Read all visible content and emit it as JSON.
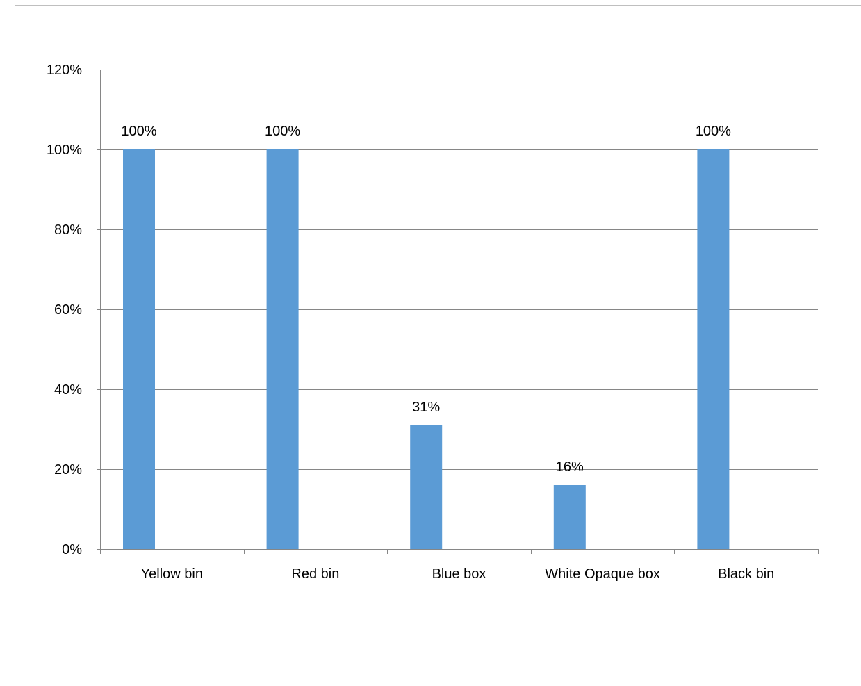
{
  "chart_data": {
    "type": "bar",
    "title": "",
    "xlabel": "",
    "ylabel": "",
    "categories": [
      "Yellow bin",
      "Red bin",
      "Blue box",
      "White Opaque box",
      "Black bin"
    ],
    "values": [
      100,
      100,
      31,
      16,
      100
    ],
    "data_labels": [
      "100%",
      "100%",
      "31%",
      "16%",
      "100%"
    ],
    "ylim": [
      0,
      120
    ],
    "yticks": [
      0,
      20,
      40,
      60,
      80,
      100,
      120
    ],
    "ytick_labels": [
      "0%",
      "20%",
      "40%",
      "60%",
      "80%",
      "100%",
      "120%"
    ],
    "grid": true,
    "legend": "none",
    "bar_color": "#5b9bd5",
    "gridline_color": "#868686"
  }
}
